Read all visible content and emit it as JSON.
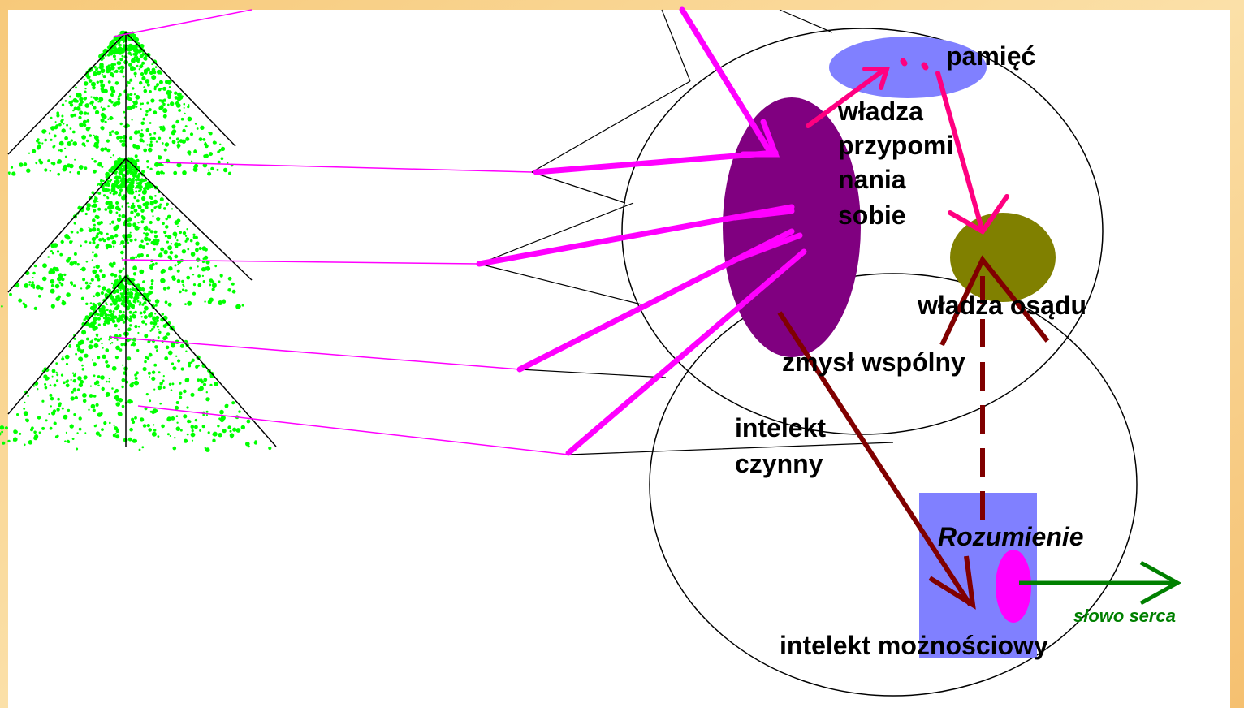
{
  "nodes": {
    "memory": "pamięć",
    "recall": [
      "władza",
      "przypomi",
      "nania",
      "sobie"
    ],
    "judgment": "władza osądu",
    "common_sense": "zmysł wspólny",
    "active_intellect": [
      "intelekt",
      "czynny"
    ],
    "understanding": "Rozumienie",
    "word_of_heart": "słowo serca",
    "possible_intellect": "intelekt możnościowy"
  }
}
